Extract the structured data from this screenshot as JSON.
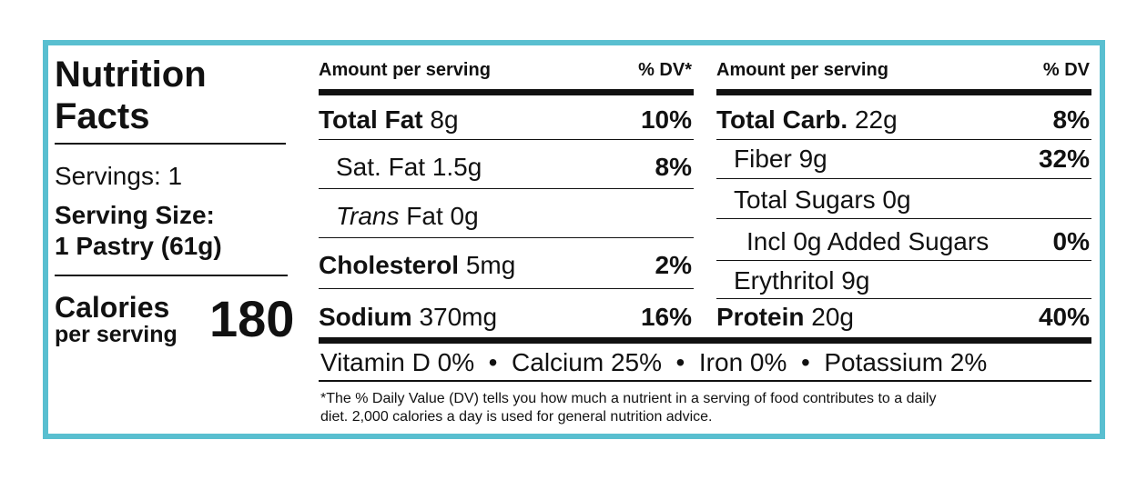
{
  "label": {
    "title_line1": "Nutrition",
    "title_line2": "Facts",
    "servings": "Servings: 1",
    "serving_size_label": "Serving Size:",
    "serving_size_value": "1 Pastry (61g)",
    "calories_label": "Calories",
    "calories_sub": "per serving",
    "calories_value": "180",
    "border_color": "#59bfd0"
  },
  "left_table": {
    "header_amount": "Amount per serving",
    "header_dv": "% DV*",
    "rows": [
      {
        "name": "Total Fat",
        "amount": "8g",
        "dv": "10%"
      },
      {
        "name": "Sat. Fat",
        "amount": "1.5g",
        "dv": "8%"
      },
      {
        "name": "Trans",
        "amount": "Fat 0g",
        "dv": ""
      },
      {
        "name": "Cholesterol",
        "amount": "5mg",
        "dv": "2%"
      },
      {
        "name": "Sodium",
        "amount": "370mg",
        "dv": "16%"
      }
    ]
  },
  "right_table": {
    "header_amount": "Amount per serving",
    "header_dv": "% DV",
    "rows": [
      {
        "name": "Total Carb.",
        "amount": "22g",
        "dv": "8%"
      },
      {
        "name": "Fiber",
        "amount": "9g",
        "dv": "32%"
      },
      {
        "name": "Total Sugars",
        "amount": "0g",
        "dv": ""
      },
      {
        "name": "Incl 0g Added Sugars",
        "amount": "",
        "dv": "0%"
      },
      {
        "name": "Erythritol",
        "amount": "9g",
        "dv": ""
      },
      {
        "name": "Protein",
        "amount": "20g",
        "dv": "40%"
      }
    ]
  },
  "vitamins": "Vitamin D 0%  •  Calcium 25%  •  Iron 0%  •  Potassium 2%",
  "footnote_line1": "*The % Daily Value (DV) tells you how much a nutrient in a serving of food contributes to a daily",
  "footnote_line2": "diet. 2,000 calories a day is used for general nutrition advice."
}
